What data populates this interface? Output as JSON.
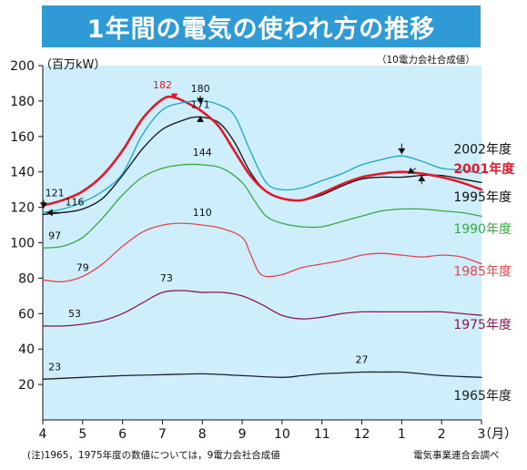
{
  "header": {
    "title": "1年間の電気の使われ方の推移",
    "unit_label": "（百万kW）",
    "note_top": "（10電力会社合成値）"
  },
  "footer": {
    "note": "(注)1965，1975年度の数値については，9電力会社合成値",
    "source": "電気事業連合会調べ"
  },
  "colors": {
    "banner": "#2e9bd6",
    "plot_bg": "#cdeefa",
    "s2002": "#1aa7c2",
    "s2001": "#e01a2b",
    "s1995": "#111111",
    "s1990": "#3aa845",
    "s1985": "#e2474f",
    "s1975": "#8a1a55",
    "s1965": "#222222"
  },
  "chart_data": {
    "type": "line",
    "title": "1年間の電気の使われ方の推移",
    "ylabel": "（百万kW）",
    "xlabel": "（月）",
    "ylim": [
      0,
      200
    ],
    "yticks": [
      20,
      40,
      60,
      80,
      100,
      120,
      140,
      160,
      180,
      200
    ],
    "x_categories": [
      "4",
      "5",
      "6",
      "7",
      "8",
      "9",
      "10",
      "11",
      "12",
      "1",
      "2",
      "3"
    ],
    "x_unit": "（月）",
    "grid": false,
    "series": [
      {
        "name": "2002年度",
        "color_key": "s2002",
        "width": 1.3,
        "values": [
          [
            0,
            117
          ],
          [
            0.5,
            119
          ],
          [
            1,
            123
          ],
          [
            1.5,
            129
          ],
          [
            2,
            139
          ],
          [
            2.5,
            161
          ],
          [
            3,
            175
          ],
          [
            3.5,
            179
          ],
          [
            4,
            180
          ],
          [
            4.4,
            178
          ],
          [
            4.8,
            172
          ],
          [
            5.2,
            152
          ],
          [
            5.6,
            134
          ],
          [
            6,
            130
          ],
          [
            6.5,
            131
          ],
          [
            7,
            135
          ],
          [
            7.5,
            139
          ],
          [
            8,
            144
          ],
          [
            8.5,
            147
          ],
          [
            9,
            149
          ],
          [
            9.5,
            146
          ],
          [
            10,
            142
          ],
          [
            10.5,
            141
          ],
          [
            11,
            139
          ]
        ]
      },
      {
        "name": "2001年度",
        "color_key": "s2001",
        "width": 2.6,
        "values": [
          [
            0,
            121
          ],
          [
            0.5,
            124
          ],
          [
            1,
            129
          ],
          [
            1.5,
            138
          ],
          [
            2,
            152
          ],
          [
            2.5,
            170
          ],
          [
            3,
            181
          ],
          [
            3.3,
            182
          ],
          [
            3.7,
            178
          ],
          [
            4,
            174
          ],
          [
            4.4,
            166
          ],
          [
            4.8,
            152
          ],
          [
            5.2,
            138
          ],
          [
            5.6,
            129
          ],
          [
            6,
            125
          ],
          [
            6.5,
            124
          ],
          [
            7,
            128
          ],
          [
            7.5,
            133
          ],
          [
            8,
            137
          ],
          [
            8.5,
            139
          ],
          [
            9,
            140
          ],
          [
            9.5,
            139
          ],
          [
            10,
            137
          ],
          [
            10.5,
            134
          ],
          [
            11,
            130
          ]
        ]
      },
      {
        "name": "1995年度",
        "color_key": "s1995",
        "width": 1.3,
        "values": [
          [
            0,
            116
          ],
          [
            0.5,
            117
          ],
          [
            1,
            119
          ],
          [
            1.5,
            125
          ],
          [
            2,
            138
          ],
          [
            2.5,
            153
          ],
          [
            3,
            164
          ],
          [
            3.5,
            169
          ],
          [
            3.9,
            171
          ],
          [
            4.4,
            168
          ],
          [
            4.8,
            157
          ],
          [
            5.2,
            140
          ],
          [
            5.6,
            129
          ],
          [
            6,
            125
          ],
          [
            6.5,
            124
          ],
          [
            7,
            127
          ],
          [
            7.5,
            132
          ],
          [
            8,
            136
          ],
          [
            8.5,
            137
          ],
          [
            9,
            137
          ],
          [
            9.5,
            138
          ],
          [
            10,
            138
          ],
          [
            10.5,
            136
          ],
          [
            11,
            134
          ]
        ]
      },
      {
        "name": "1990年度",
        "color_key": "s1990",
        "width": 1.3,
        "values": [
          [
            0,
            97
          ],
          [
            0.5,
            98
          ],
          [
            1,
            103
          ],
          [
            1.5,
            114
          ],
          [
            2,
            127
          ],
          [
            2.5,
            137
          ],
          [
            3,
            142
          ],
          [
            3.5,
            144
          ],
          [
            4,
            144
          ],
          [
            4.5,
            142
          ],
          [
            5,
            134
          ],
          [
            5.3,
            124
          ],
          [
            5.6,
            115
          ],
          [
            6,
            111
          ],
          [
            6.5,
            109
          ],
          [
            7,
            109
          ],
          [
            7.5,
            112
          ],
          [
            8,
            115
          ],
          [
            8.5,
            118
          ],
          [
            9,
            119
          ],
          [
            9.5,
            119
          ],
          [
            10,
            118
          ],
          [
            10.5,
            117
          ],
          [
            11,
            115
          ]
        ]
      },
      {
        "name": "1985年度",
        "color_key": "s1985",
        "width": 1.3,
        "values": [
          [
            0,
            79
          ],
          [
            0.5,
            78
          ],
          [
            1,
            81
          ],
          [
            1.5,
            88
          ],
          [
            2,
            98
          ],
          [
            2.5,
            106
          ],
          [
            3,
            110
          ],
          [
            3.5,
            111
          ],
          [
            4,
            110
          ],
          [
            4.5,
            108
          ],
          [
            5,
            103
          ],
          [
            5.2,
            94
          ],
          [
            5.4,
            84
          ],
          [
            5.6,
            81
          ],
          [
            6,
            82
          ],
          [
            6.5,
            86
          ],
          [
            7,
            88
          ],
          [
            7.5,
            90
          ],
          [
            8,
            93
          ],
          [
            8.5,
            94
          ],
          [
            9,
            93
          ],
          [
            9.5,
            92
          ],
          [
            10,
            93
          ],
          [
            10.5,
            92
          ],
          [
            11,
            88
          ]
        ]
      },
      {
        "name": "1975年度",
        "color_key": "s1975",
        "width": 1.3,
        "values": [
          [
            0,
            53
          ],
          [
            0.5,
            53
          ],
          [
            1,
            54
          ],
          [
            1.5,
            56
          ],
          [
            2,
            60
          ],
          [
            2.5,
            66
          ],
          [
            3,
            72
          ],
          [
            3.5,
            73
          ],
          [
            4,
            72
          ],
          [
            4.5,
            72
          ],
          [
            5,
            70
          ],
          [
            5.5,
            65
          ],
          [
            6,
            59
          ],
          [
            6.5,
            57
          ],
          [
            7,
            58
          ],
          [
            7.5,
            60
          ],
          [
            8,
            61
          ],
          [
            8.5,
            61
          ],
          [
            9,
            61
          ],
          [
            9.5,
            61
          ],
          [
            10,
            61
          ],
          [
            10.5,
            60
          ],
          [
            11,
            59
          ]
        ]
      },
      {
        "name": "1965年度",
        "color_key": "s1965",
        "width": 1.3,
        "values": [
          [
            0,
            23
          ],
          [
            1,
            24
          ],
          [
            2,
            25
          ],
          [
            3,
            25.5
          ],
          [
            4,
            26
          ],
          [
            5,
            25
          ],
          [
            6,
            24
          ],
          [
            6.5,
            25
          ],
          [
            7,
            26
          ],
          [
            7.5,
            26.5
          ],
          [
            8,
            27
          ],
          [
            8.5,
            27
          ],
          [
            9,
            27
          ],
          [
            9.5,
            26
          ],
          [
            10,
            25
          ],
          [
            11,
            24
          ]
        ]
      }
    ],
    "data_labels": [
      {
        "text": "182",
        "x": 3.0,
        "y": 182
      },
      {
        "text": "180",
        "x": 3.95,
        "y": 180
      },
      {
        "text": "171",
        "x": 3.95,
        "y": 171
      },
      {
        "text": "144",
        "x": 4.0,
        "y": 144
      },
      {
        "text": "110",
        "x": 4.0,
        "y": 110
      },
      {
        "text": "73",
        "x": 3.1,
        "y": 73
      },
      {
        "text": "27",
        "x": 8.0,
        "y": 27
      },
      {
        "text": "23",
        "x": 0.3,
        "y": 23
      },
      {
        "text": "53",
        "x": 0.8,
        "y": 53
      },
      {
        "text": "79",
        "x": 1.0,
        "y": 79
      },
      {
        "text": "97",
        "x": 0.3,
        "y": 97
      },
      {
        "text": "116",
        "x": 0.8,
        "y": 116
      },
      {
        "text": "121",
        "x": 0.3,
        "y": 121
      }
    ],
    "legend": [
      {
        "name": "2002年度",
        "color_key": "s1995",
        "x": 10.3,
        "y": 153,
        "bold": false
      },
      {
        "name": "2001年度",
        "color_key": "s2001",
        "x": 10.3,
        "y": 142,
        "bold": true
      },
      {
        "name": "1995年度",
        "color_key": "s1995",
        "x": 10.3,
        "y": 126,
        "bold": false
      },
      {
        "name": "1990年度",
        "color_key": "s1990",
        "x": 10.3,
        "y": 108,
        "bold": false
      },
      {
        "name": "1985年度",
        "color_key": "s1985",
        "x": 10.3,
        "y": 84,
        "bold": false
      },
      {
        "name": "1975年度",
        "color_key": "s1975",
        "x": 10.3,
        "y": 54,
        "bold": false
      },
      {
        "name": "1965年度",
        "color_key": "s1965",
        "x": 10.3,
        "y": 14,
        "bold": false
      }
    ]
  }
}
